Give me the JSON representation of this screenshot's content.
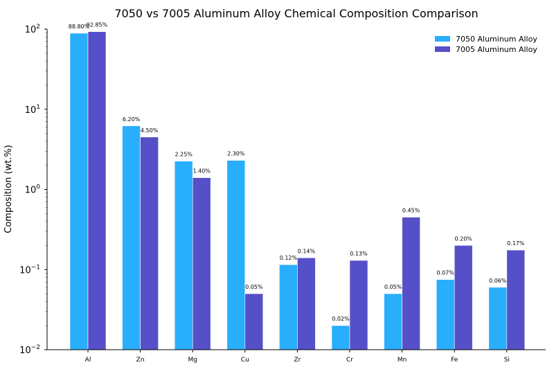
{
  "chart_data": {
    "type": "bar",
    "title": "7050 vs 7005 Aluminum Alloy Chemical Composition Comparison",
    "xlabel": "",
    "ylabel": "Composition (wt.%)",
    "yscale": "log",
    "ylim": [
      0.01,
      100
    ],
    "yticks": [
      {
        "value": 0.01,
        "base": "10",
        "exp": "−2"
      },
      {
        "value": 0.1,
        "base": "10",
        "exp": "−1"
      },
      {
        "value": 1,
        "base": "10",
        "exp": "0"
      },
      {
        "value": 10,
        "base": "10",
        "exp": "1"
      },
      {
        "value": 100,
        "base": "10",
        "exp": "2"
      }
    ],
    "grid": false,
    "legend_position": "top-right",
    "categories": [
      "Al",
      "Zn",
      "Mg",
      "Cu",
      "Zr",
      "Cr",
      "Mn",
      "Fe",
      "Si"
    ],
    "series": [
      {
        "name": "7050 Aluminum Alloy",
        "color": "#29aefc",
        "values": [
          88.8,
          6.2,
          2.25,
          2.3,
          0.115,
          0.02,
          0.05,
          0.075,
          0.06
        ],
        "labels": [
          "88.80%",
          "6.20%",
          "2.25%",
          "2.30%",
          "0.12%",
          "0.02%",
          "0.05%",
          "0.07%",
          "0.06%"
        ]
      },
      {
        "name": "7005 Aluminum Alloy",
        "color": "#5650c8",
        "values": [
          92.85,
          4.5,
          1.4,
          0.05,
          0.14,
          0.13,
          0.45,
          0.2,
          0.175
        ],
        "labels": [
          "92.85%",
          "4.50%",
          "1.40%",
          "0.05%",
          "0.14%",
          "0.13%",
          "0.45%",
          "0.20%",
          "0.17%"
        ]
      }
    ]
  }
}
